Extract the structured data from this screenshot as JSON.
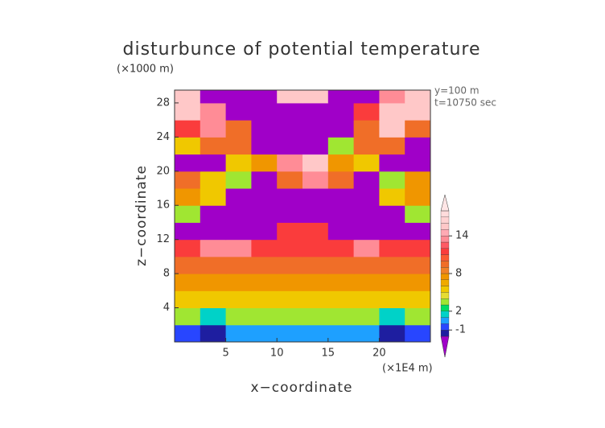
{
  "chart_data": {
    "type": "contour",
    "title": "disturbunce of potential temperature",
    "y_unit": "(×1000 m)",
    "annotations": [
      "y=100 m",
      "t=10750 sec"
    ],
    "x_label": "x−coordinate",
    "y_label": "z−coordinate",
    "x_unit": "(×1E4 m)",
    "xlim": [
      0,
      25
    ],
    "ylim": [
      0,
      29.5
    ],
    "xticks": [
      5,
      10,
      15,
      20
    ],
    "yticks": [
      4,
      8,
      12,
      16,
      20,
      24,
      28
    ],
    "x_edges": [
      0,
      2.5,
      5,
      7.5,
      10,
      12.5,
      15,
      17.5,
      20,
      22.5,
      25
    ],
    "z_edges": [
      0,
      2,
      4,
      6,
      8,
      10,
      12,
      14,
      16,
      18,
      20,
      22,
      24,
      26,
      28,
      29.5
    ],
    "values": [
      [
        -0.5,
        -1.5,
        0.5,
        0.5,
        0.5,
        0.5,
        0.5,
        0.5,
        -1.5,
        -0.5
      ],
      [
        3,
        1.5,
        3,
        3,
        3,
        3,
        3,
        3,
        1.5,
        3
      ],
      [
        5,
        5,
        5,
        5,
        5,
        5,
        5,
        5,
        5,
        5
      ],
      [
        7,
        7,
        7,
        7,
        7,
        7,
        7,
        7,
        7,
        7
      ],
      [
        9,
        9,
        9,
        9,
        9,
        9,
        9,
        9,
        9,
        9
      ],
      [
        11,
        13,
        13,
        11,
        11,
        11,
        11,
        13,
        11,
        11
      ],
      [
        -3,
        -3,
        -3,
        -3,
        11,
        11,
        -3,
        -3,
        -3,
        -3
      ],
      [
        3,
        -3,
        -3,
        -3,
        -3,
        -3,
        -3,
        -3,
        -3,
        3
      ],
      [
        7,
        5,
        -3,
        -3,
        -3,
        -3,
        -3,
        -3,
        5,
        7
      ],
      [
        9,
        5,
        3,
        -3,
        9,
        13,
        9,
        -3,
        3,
        7
      ],
      [
        -3,
        -3,
        5,
        7,
        13,
        15,
        7,
        5,
        -3,
        -3
      ],
      [
        5,
        9,
        9,
        -3,
        -3,
        -3,
        3,
        9,
        9,
        -3
      ],
      [
        11,
        13,
        9,
        -3,
        -3,
        -3,
        -3,
        9,
        15,
        9
      ],
      [
        15,
        13,
        -3,
        -3,
        -3,
        -3,
        -3,
        11,
        15,
        15
      ],
      [
        15,
        -3,
        -3,
        -3,
        15,
        15,
        -3,
        -3,
        13,
        15
      ]
    ],
    "levels": [
      -2,
      -1,
      0,
      1,
      2,
      3,
      4,
      5,
      6,
      7,
      8,
      9,
      10,
      11,
      12,
      13,
      14,
      15,
      16,
      17,
      18
    ],
    "colors": [
      "#a000c8",
      "#1e1ea0",
      "#2846ff",
      "#1ea0ff",
      "#00d2c8",
      "#00dc64",
      "#a0e632",
      "#e6dc32",
      "#f0c800",
      "#f0aa00",
      "#f09600",
      "#f08228",
      "#f06e28",
      "#fa5a32",
      "#fa3c3c",
      "#ff5a64",
      "#ff8c96",
      "#ffaab4",
      "#ffc8c8",
      "#ffd2d2",
      "#ffdcdc",
      "#ffe6e6"
    ],
    "colorbar_ticks": [
      -1,
      2,
      8,
      14
    ]
  }
}
